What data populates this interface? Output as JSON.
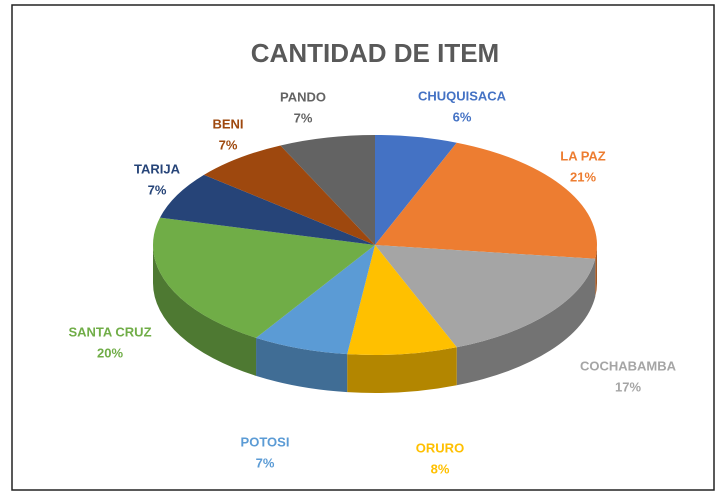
{
  "chart_data": {
    "type": "pie",
    "title": "CANTIDAD DE ITEM",
    "categories": [
      "CHUQUISACA",
      "LA PAZ",
      "COCHABAMBA",
      "ORURO",
      "POTOSI",
      "SANTA CRUZ",
      "TARIJA",
      "BENI",
      "PANDO"
    ],
    "values": [
      6,
      21,
      17,
      8,
      7,
      20,
      7,
      7,
      7
    ],
    "value_labels": [
      "6%",
      "21%",
      "17%",
      "8%",
      "7%",
      "20%",
      "7%",
      "7%",
      "7%"
    ],
    "colors": [
      "#4472c4",
      "#ed7d31",
      "#a5a5a5",
      "#ffc000",
      "#5b9bd5",
      "#70ad47",
      "#264478",
      "#9e480e",
      "#636363"
    ]
  }
}
